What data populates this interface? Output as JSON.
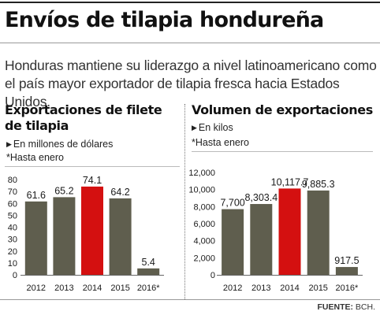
{
  "header": {
    "title": "Envíos de tilapia hondureña",
    "intro": "Honduras mantiene su liderazgo a nivel latinoamericano como el país mayor exportador de tilapia fresca hacia Estados Unidos."
  },
  "source": {
    "label": "FUENTE:",
    "value": "BCH."
  },
  "colors": {
    "bar": "#5f5e4e",
    "highlight": "#d41010",
    "text": "#1a1a1a"
  },
  "chart_data": [
    {
      "type": "bar",
      "title": "Exportaciones de filete de tilapia",
      "unit_note": "En millones de dólares",
      "footnote": "*Hasta enero",
      "categories": [
        "2012",
        "2013",
        "2014",
        "2015",
        "2016*"
      ],
      "values": [
        61.6,
        65.2,
        74.1,
        64.2,
        5.4
      ],
      "value_labels": [
        "61.6",
        "65.2",
        "74.1",
        "64.2",
        "5.4"
      ],
      "highlight_index": 2,
      "ylim": [
        0,
        80
      ],
      "yticks": [
        0,
        10,
        20,
        30,
        40,
        50,
        60,
        70,
        80
      ],
      "ytick_labels": [
        "0",
        "10",
        "20",
        "30",
        "40",
        "50",
        "60",
        "70",
        "80"
      ],
      "grid": false
    },
    {
      "type": "bar",
      "title": "Volumen de exportaciones",
      "unit_note": "En kilos",
      "footnote": "*Hasta enero",
      "categories": [
        "2012",
        "2013",
        "2014",
        "2015",
        "2016*"
      ],
      "values": [
        7700,
        8303.4,
        10117.7,
        9885.3,
        917.5
      ],
      "value_labels": [
        "7,700",
        "8,303.4",
        "10,117.7",
        "9,885.3",
        "917.5"
      ],
      "highlight_index": 2,
      "ylim": [
        0,
        12000
      ],
      "yticks": [
        0,
        2000,
        4000,
        6000,
        8000,
        10000,
        12000
      ],
      "ytick_labels": [
        "0",
        "2,000",
        "4,000",
        "6,000",
        "8,000",
        "10,000",
        "12,000"
      ],
      "grid": false
    }
  ]
}
